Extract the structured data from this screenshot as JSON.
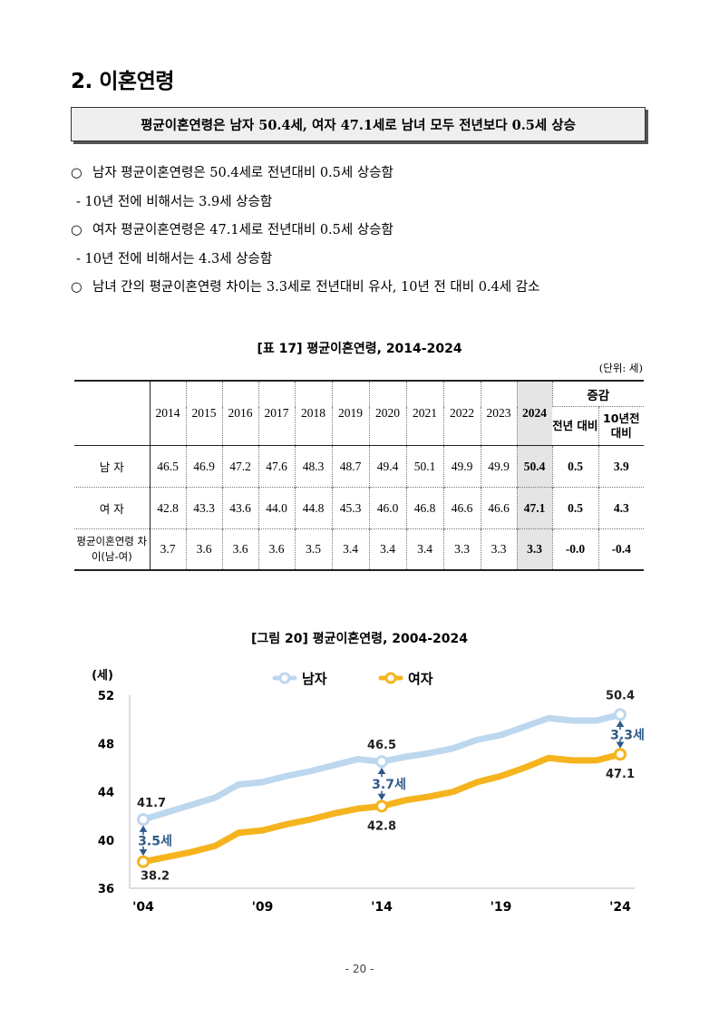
{
  "section": {
    "title": "2. 이혼연령"
  },
  "summary": "평균이혼연령은 남자 50.4세, 여자 47.1세로 남녀 모두 전년보다 0.5세 상승",
  "bullets": [
    {
      "marker": "○",
      "text": "남자 평균이혼연령은 50.4세로 전년대비 0.5세 상승함",
      "sub": "- 10년 전에 비해서는 3.9세 상승함"
    },
    {
      "marker": "○",
      "text": "여자 평균이혼연령은 47.1세로 전년대비 0.5세 상승함",
      "sub": "- 10년 전에 비해서는 4.3세 상승함"
    },
    {
      "marker": "○",
      "text": "남녀 간의 평균이혼연령 차이는 3.3세로 전년대비 유사, 10년 전 대비 0.4세 감소",
      "sub": null
    }
  ],
  "table": {
    "caption": "[표 17] 평균이혼연령, 2014-2024",
    "unit": "(단위: 세)",
    "years": [
      "2014",
      "2015",
      "2016",
      "2017",
      "2018",
      "2019",
      "2020",
      "2021",
      "2022",
      "2023",
      "2024"
    ],
    "change_header": "증감",
    "change_cols": [
      "전년 대비",
      "10년전 대비"
    ],
    "rows": [
      {
        "label": "남 자",
        "values": [
          "46.5",
          "46.9",
          "47.2",
          "47.6",
          "48.3",
          "48.7",
          "49.4",
          "50.1",
          "49.9",
          "49.9",
          "50.4"
        ],
        "changes": [
          "0.5",
          "3.9"
        ]
      },
      {
        "label": "여 자",
        "values": [
          "42.8",
          "43.3",
          "43.6",
          "44.0",
          "44.8",
          "45.3",
          "46.0",
          "46.8",
          "46.6",
          "46.6",
          "47.1"
        ],
        "changes": [
          "0.5",
          "4.3"
        ]
      },
      {
        "label": "평균이혼연령 차이(남-여)",
        "values": [
          "3.7",
          "3.6",
          "3.6",
          "3.6",
          "3.5",
          "3.4",
          "3.4",
          "3.4",
          "3.3",
          "3.3",
          "3.3"
        ],
        "changes": [
          "-0.0",
          "-0.4"
        ]
      }
    ]
  },
  "chart_data": {
    "type": "line",
    "title": "[그림 20] 평균이혼연령, 2004-2024",
    "ylabel": "(세)",
    "ylim": [
      36,
      52
    ],
    "yticks": [
      "36",
      "40",
      "44",
      "48",
      "52"
    ],
    "x": [
      2004,
      2005,
      2006,
      2007,
      2008,
      2009,
      2010,
      2011,
      2012,
      2013,
      2014,
      2015,
      2016,
      2017,
      2018,
      2019,
      2020,
      2021,
      2022,
      2023,
      2024
    ],
    "xtick_labels": [
      "'04",
      "'09",
      "'14",
      "'19",
      "'24"
    ],
    "series": [
      {
        "name": "남자",
        "color": "#bdd7ee",
        "values": [
          41.7,
          42.3,
          42.9,
          43.5,
          44.6,
          44.8,
          45.3,
          45.7,
          46.2,
          46.7,
          46.5,
          46.9,
          47.2,
          47.6,
          48.3,
          48.7,
          49.4,
          50.1,
          49.9,
          49.9,
          50.4
        ]
      },
      {
        "name": "여자",
        "color": "#f5b41e",
        "values": [
          38.2,
          38.6,
          39.0,
          39.5,
          40.6,
          40.8,
          41.3,
          41.7,
          42.2,
          42.6,
          42.8,
          43.3,
          43.6,
          44.0,
          44.8,
          45.3,
          46.0,
          46.8,
          46.6,
          46.6,
          47.1
        ]
      }
    ],
    "labels": {
      "male_start": "41.7",
      "male_mid": "46.5",
      "male_end": "50.4",
      "female_start": "38.2",
      "female_mid": "42.8",
      "female_end": "47.1",
      "gap_start": "3.5세",
      "gap_mid": "3.7세",
      "gap_end": "3.3세"
    }
  },
  "page_number": "- 20 -"
}
